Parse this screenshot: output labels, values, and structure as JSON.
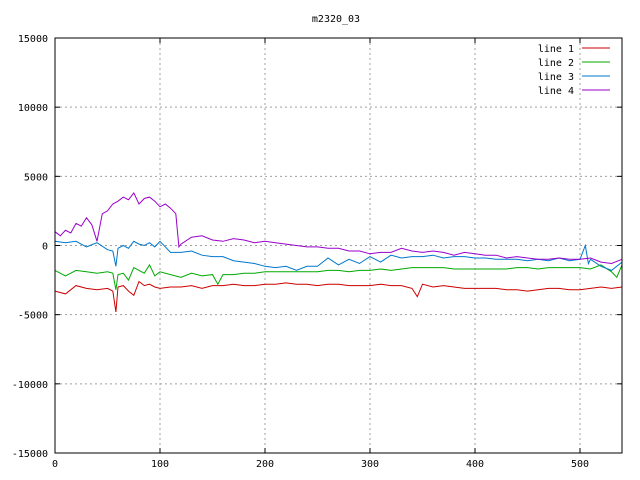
{
  "chart_data": {
    "type": "line",
    "title": "m2320_03",
    "xlabel": "",
    "ylabel": "",
    "xlim": [
      0,
      540
    ],
    "ylim": [
      -15000,
      15000
    ],
    "xticks": [
      0,
      100,
      200,
      300,
      400,
      500
    ],
    "yticks": [
      -15000,
      -10000,
      -5000,
      0,
      5000,
      10000,
      15000
    ],
    "grid": true,
    "legend_position": "top-right",
    "series": [
      {
        "name": "line 1",
        "color": "#cc0000",
        "x": [
          0,
          10,
          20,
          30,
          40,
          50,
          55,
          58,
          60,
          65,
          70,
          75,
          80,
          85,
          90,
          95,
          100,
          110,
          120,
          130,
          140,
          150,
          160,
          170,
          180,
          190,
          200,
          210,
          220,
          230,
          240,
          250,
          260,
          270,
          280,
          290,
          300,
          310,
          320,
          330,
          340,
          345,
          350,
          360,
          370,
          380,
          390,
          400,
          410,
          420,
          430,
          440,
          450,
          460,
          470,
          480,
          490,
          500,
          510,
          520,
          530,
          540
        ],
        "y": [
          -3300,
          -3500,
          -2900,
          -3100,
          -3200,
          -3100,
          -3300,
          -4800,
          -3000,
          -2900,
          -3300,
          -3600,
          -2600,
          -2900,
          -2800,
          -3000,
          -3100,
          -3000,
          -3000,
          -2900,
          -3100,
          -2900,
          -2900,
          -2800,
          -2900,
          -2900,
          -2800,
          -2800,
          -2700,
          -2800,
          -2800,
          -2900,
          -2800,
          -2800,
          -2900,
          -2900,
          -2900,
          -2800,
          -2900,
          -2900,
          -3100,
          -3700,
          -2800,
          -3000,
          -2900,
          -3000,
          -3100,
          -3100,
          -3100,
          -3100,
          -3200,
          -3200,
          -3300,
          -3200,
          -3100,
          -3100,
          -3200,
          -3200,
          -3100,
          -3000,
          -3100,
          -3000
        ]
      },
      {
        "name": "line 2",
        "color": "#00aa00",
        "x": [
          0,
          10,
          20,
          30,
          40,
          50,
          55,
          58,
          60,
          65,
          70,
          75,
          80,
          85,
          90,
          95,
          100,
          110,
          120,
          130,
          140,
          150,
          155,
          160,
          170,
          180,
          190,
          200,
          210,
          220,
          230,
          240,
          250,
          260,
          270,
          280,
          290,
          300,
          310,
          320,
          330,
          340,
          350,
          360,
          370,
          380,
          390,
          400,
          410,
          420,
          430,
          440,
          450,
          460,
          470,
          480,
          490,
          500,
          510,
          520,
          530,
          535,
          540
        ],
        "y": [
          -1800,
          -2200,
          -1800,
          -1900,
          -2000,
          -1900,
          -2000,
          -3200,
          -2100,
          -2000,
          -2500,
          -1600,
          -1800,
          -2000,
          -1400,
          -2200,
          -1900,
          -2100,
          -2300,
          -2000,
          -2200,
          -2100,
          -2800,
          -2100,
          -2100,
          -2000,
          -2000,
          -1900,
          -1900,
          -1900,
          -1900,
          -1900,
          -1900,
          -1800,
          -1800,
          -1900,
          -1800,
          -1800,
          -1700,
          -1800,
          -1700,
          -1600,
          -1600,
          -1600,
          -1600,
          -1700,
          -1700,
          -1700,
          -1700,
          -1700,
          -1700,
          -1600,
          -1600,
          -1700,
          -1600,
          -1600,
          -1600,
          -1600,
          -1700,
          -1400,
          -1900,
          -2300,
          -1400
        ]
      },
      {
        "name": "line 3",
        "color": "#0077cc",
        "x": [
          0,
          10,
          20,
          30,
          40,
          50,
          55,
          58,
          60,
          65,
          70,
          75,
          80,
          85,
          90,
          95,
          100,
          110,
          120,
          130,
          140,
          150,
          160,
          170,
          180,
          190,
          200,
          210,
          220,
          230,
          240,
          250,
          260,
          270,
          280,
          290,
          300,
          310,
          320,
          330,
          340,
          350,
          360,
          370,
          380,
          390,
          400,
          410,
          420,
          430,
          440,
          450,
          460,
          470,
          480,
          490,
          500,
          505,
          508,
          510,
          520,
          530,
          540
        ],
        "y": [
          300,
          200,
          300,
          -100,
          200,
          -300,
          -400,
          -1500,
          -200,
          0,
          -200,
          300,
          100,
          0,
          200,
          -100,
          300,
          -500,
          -500,
          -400,
          -700,
          -800,
          -800,
          -1100,
          -1200,
          -1300,
          -1500,
          -1600,
          -1500,
          -1800,
          -1500,
          -1500,
          -900,
          -1400,
          -1000,
          -1300,
          -800,
          -1200,
          -700,
          -900,
          -800,
          -800,
          -700,
          -900,
          -800,
          -800,
          -900,
          -900,
          -1000,
          -1000,
          -1000,
          -1100,
          -1000,
          -1100,
          -900,
          -1100,
          -1000,
          0,
          -1300,
          -1000,
          -1500,
          -1800,
          -1200
        ]
      },
      {
        "name": "line 4",
        "color": "#9900cc",
        "x": [
          0,
          5,
          10,
          15,
          20,
          25,
          30,
          35,
          40,
          45,
          50,
          55,
          60,
          65,
          70,
          75,
          80,
          85,
          90,
          95,
          100,
          105,
          110,
          115,
          118,
          120,
          130,
          140,
          150,
          160,
          170,
          180,
          190,
          200,
          210,
          220,
          230,
          240,
          250,
          260,
          270,
          280,
          290,
          300,
          310,
          320,
          330,
          340,
          350,
          360,
          370,
          380,
          390,
          400,
          410,
          420,
          430,
          440,
          450,
          460,
          470,
          480,
          490,
          500,
          510,
          520,
          530,
          540
        ],
        "y": [
          1000,
          700,
          1100,
          900,
          1600,
          1400,
          2000,
          1500,
          300,
          2300,
          2500,
          3000,
          3200,
          3500,
          3300,
          3800,
          3000,
          3400,
          3500,
          3200,
          2800,
          3000,
          2700,
          2300,
          -100,
          100,
          600,
          700,
          400,
          300,
          500,
          400,
          200,
          300,
          200,
          100,
          0,
          -100,
          -100,
          -200,
          -200,
          -400,
          -400,
          -600,
          -500,
          -500,
          -200,
          -400,
          -500,
          -400,
          -500,
          -700,
          -500,
          -600,
          -700,
          -700,
          -900,
          -800,
          -900,
          -1000,
          -1000,
          -900,
          -1000,
          -1000,
          -900,
          -1200,
          -1300,
          -1000
        ]
      }
    ]
  }
}
